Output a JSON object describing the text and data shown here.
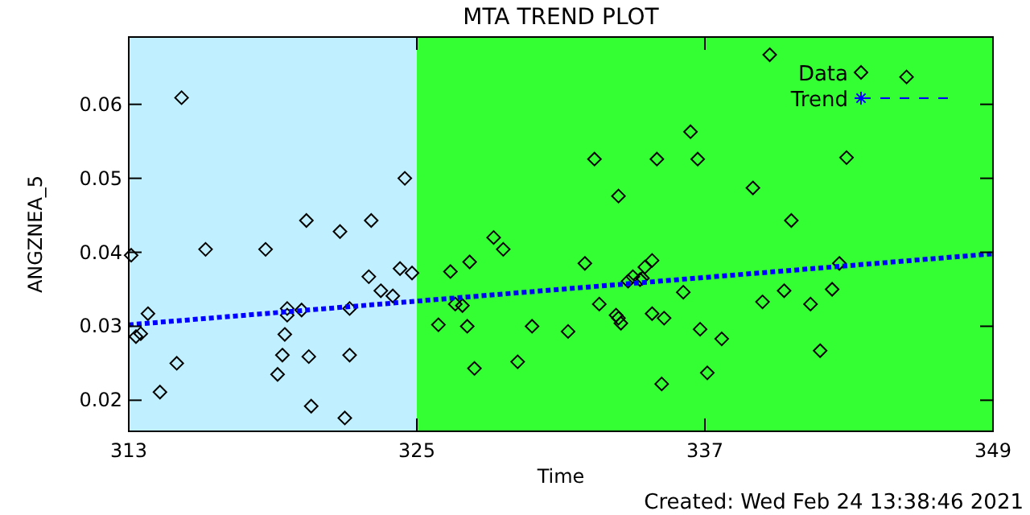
{
  "chart_data": {
    "type": "scatter",
    "title": "MTA TREND PLOT",
    "xlabel": "Time",
    "ylabel": "ANGZNEA_5",
    "xlim": [
      313,
      349
    ],
    "xticks": [
      313,
      325,
      337,
      349
    ],
    "ylim": [
      0.0158,
      0.0691
    ],
    "yticks": [
      0.02,
      0.03,
      0.04,
      0.05,
      0.06
    ],
    "grid": false,
    "legend": "top right",
    "bands": [
      {
        "axis": "x",
        "from": 313,
        "to": 325,
        "color": "#c0f0ff"
      },
      {
        "axis": "x",
        "from": 325,
        "to": 349,
        "color": "#33ff33"
      }
    ],
    "annotations": [
      "Created: Wed Feb 24 13:38:46 2021"
    ],
    "series": [
      {
        "name": "Data",
        "marker": "diamond",
        "color": "#000000",
        "x": [
          313.3,
          313.5,
          313.8,
          313.1,
          315.2,
          314.3,
          315.0,
          316.2,
          318.7,
          319.2,
          319.4,
          319.5,
          319.6,
          319.6,
          320.2,
          320.4,
          320.5,
          320.6,
          321.8,
          322.0,
          322.2,
          322.2,
          323.0,
          323.1,
          323.5,
          324.0,
          324.3,
          324.8,
          324.5,
          325.9,
          326.4,
          326.6,
          326.9,
          327.1,
          327.2,
          327.4,
          328.2,
          328.6,
          329.2,
          329.8,
          331.3,
          332.0,
          332.4,
          332.6,
          333.4,
          333.3,
          333.4,
          333.5,
          333.8,
          334.0,
          334.3,
          334.4,
          334.5,
          334.8,
          334.8,
          335.0,
          335.3,
          335.2,
          336.1,
          336.4,
          336.7,
          336.8,
          337.1,
          337.7,
          339.0,
          339.7,
          339.4,
          340.3,
          340.6,
          341.4,
          341.8,
          342.3,
          342.6,
          342.9,
          345.4
        ],
        "values": [
          0.0286,
          0.029,
          0.0317,
          0.0396,
          0.0609,
          0.0211,
          0.025,
          0.0404,
          0.0404,
          0.0235,
          0.0261,
          0.0289,
          0.0315,
          0.0324,
          0.0322,
          0.0443,
          0.0259,
          0.0192,
          0.0428,
          0.0176,
          0.0324,
          0.0261,
          0.0367,
          0.0443,
          0.0348,
          0.0341,
          0.0378,
          0.0372,
          0.05,
          0.0302,
          0.0374,
          0.033,
          0.0328,
          0.03,
          0.0387,
          0.0243,
          0.042,
          0.0404,
          0.0252,
          0.03,
          0.0293,
          0.0385,
          0.0526,
          0.033,
          0.0476,
          0.0315,
          0.0311,
          0.0304,
          0.0361,
          0.0367,
          0.0363,
          0.0365,
          0.038,
          0.0389,
          0.0317,
          0.0526,
          0.0311,
          0.0222,
          0.0346,
          0.0563,
          0.0526,
          0.0296,
          0.0237,
          0.0283,
          0.0487,
          0.0667,
          0.0333,
          0.0348,
          0.0443,
          0.033,
          0.0267,
          0.035,
          0.0385,
          0.0528,
          0.0637
        ]
      },
      {
        "name": "Trend",
        "type": "line",
        "marker": "none",
        "line_style": "dotted",
        "color": "#0000ff",
        "x": [
          313,
          349
        ],
        "values": [
          0.0302,
          0.0398
        ]
      }
    ]
  }
}
